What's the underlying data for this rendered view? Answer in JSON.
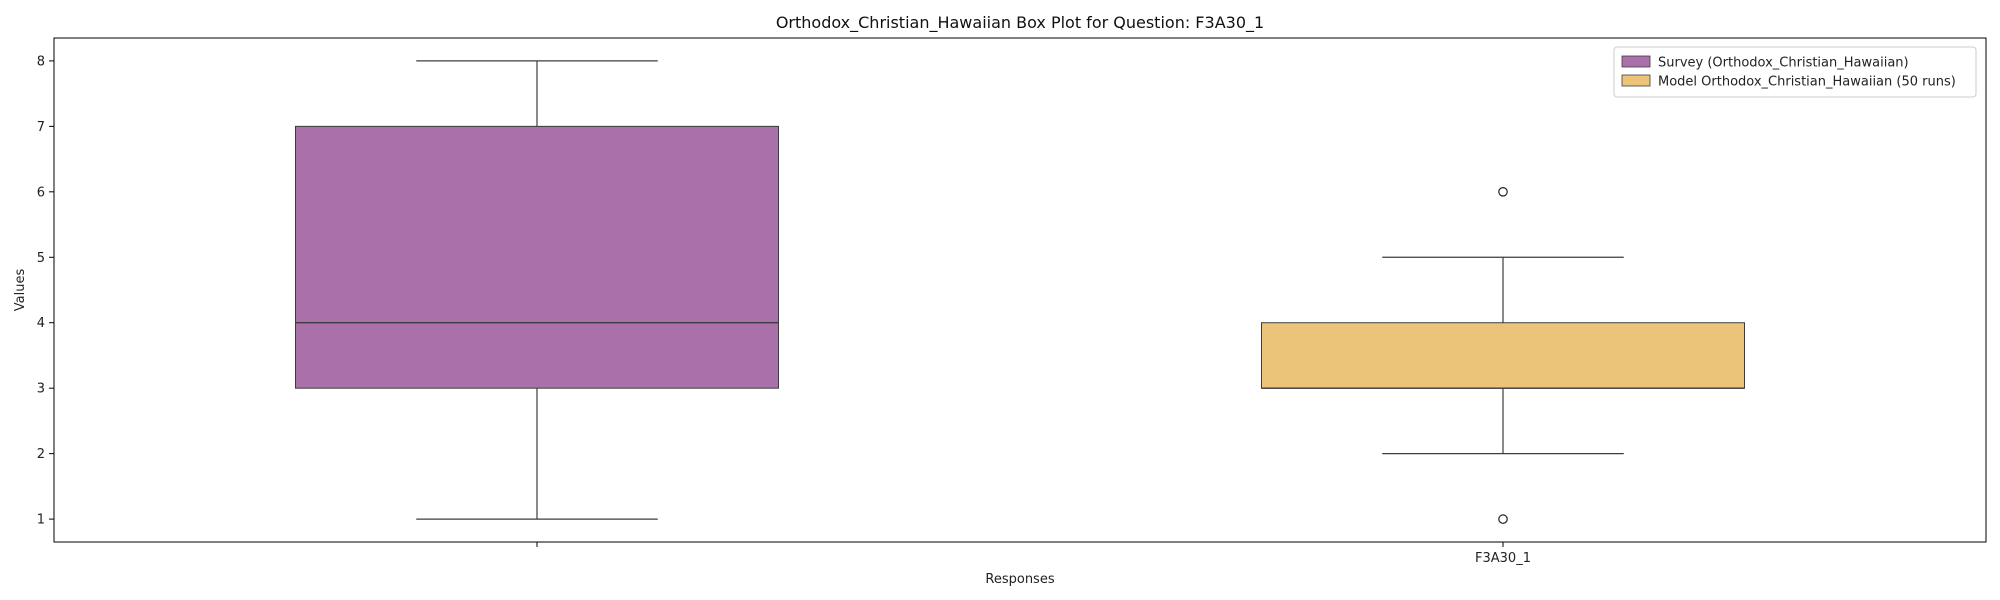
{
  "chart_data": {
    "type": "box",
    "title": "Orthodox_Christian_Hawaiian Box Plot for Question: F3A30_1",
    "xlabel": "Responses",
    "ylabel": "Values",
    "categories": [
      "F3A30_1"
    ],
    "ylim": [
      0.65,
      8.35
    ],
    "yticks": [
      1,
      2,
      3,
      4,
      5,
      6,
      7,
      8
    ],
    "grid": false,
    "legend_position": "top-right",
    "series": [
      {
        "name": "Survey (Orthodox_Christian_Hawaiian)",
        "color": "#a970a9",
        "whisker_low": 1,
        "q1": 3,
        "median": 4,
        "q3": 7,
        "whisker_high": 8,
        "outliers": []
      },
      {
        "name": "Model Orthodox_Christian_Hawaiian (50 runs)",
        "color": "#ecc479",
        "whisker_low": 2,
        "q1": 3,
        "median": 3,
        "q3": 4,
        "whisker_high": 5,
        "outliers": [
          1,
          6
        ]
      }
    ]
  }
}
